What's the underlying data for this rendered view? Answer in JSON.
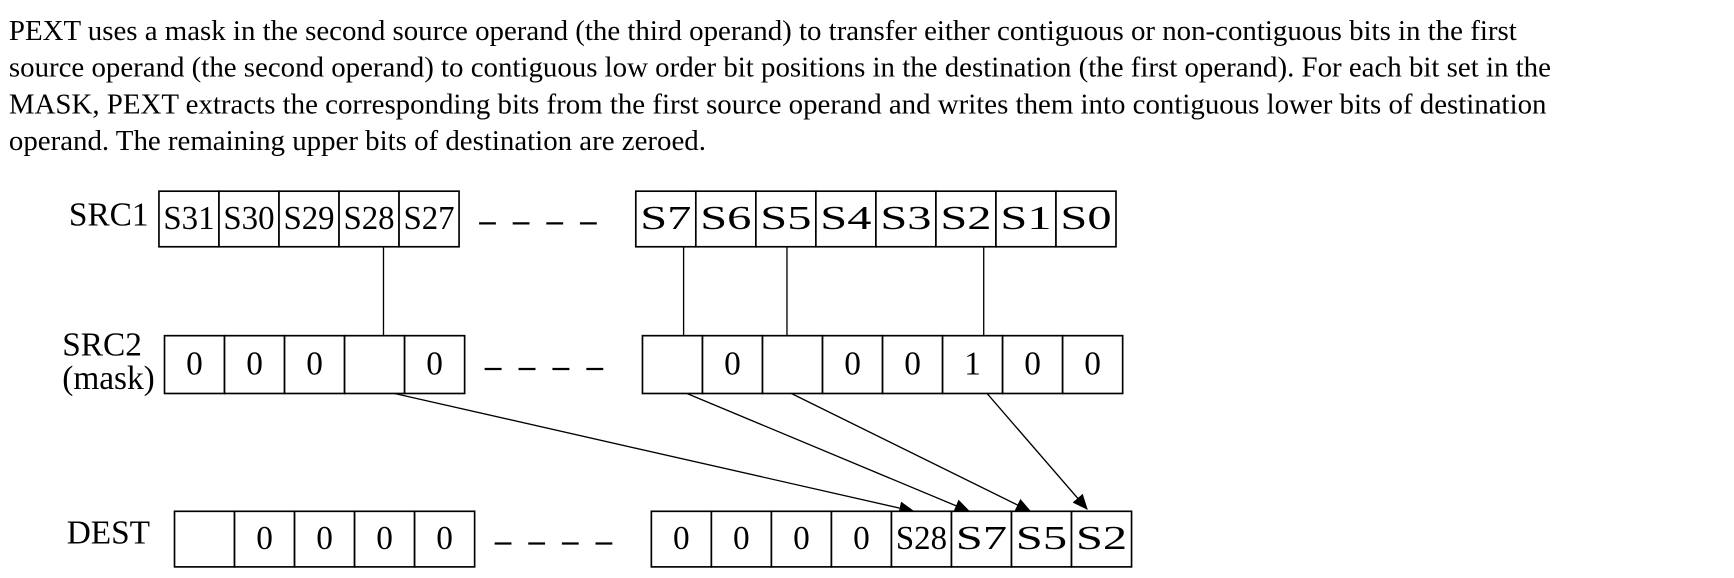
{
  "paragraph": {
    "lines": [
      "PEXT uses a mask in the second source operand (the third operand) to transfer either contiguous or non-contiguous bits in the first",
      "source operand (the second operand) to contiguous low order bit positions in the destination (the first operand). For each bit set in the",
      "MASK, PEXT extracts the corresponding bits from the first source operand and writes them into contiguous lower bits of destination",
      "operand. The remaining upper bits of destination are zeroed."
    ]
  },
  "diagram": {
    "rows": [
      {
        "label_lines": [
          "SRC1"
        ],
        "left_cells": [
          "S31",
          "S30",
          "S29",
          "S28",
          "S27"
        ],
        "right_cells": [
          "S7",
          "S6",
          "S5",
          "S4",
          "S3",
          "S2",
          "S1",
          "S0"
        ]
      },
      {
        "label_lines": [
          "SRC2",
          "(mask)"
        ],
        "left_cells": [
          "0",
          "0",
          "0",
          null,
          "0"
        ],
        "right_cells": [
          null,
          "0",
          null,
          "0",
          "0",
          "1",
          "0",
          "0"
        ]
      },
      {
        "label_lines": [
          "DEST"
        ],
        "left_cells": [
          null,
          "0",
          "0",
          "0",
          "0"
        ],
        "right_cells": [
          "0",
          "0",
          "0",
          "0",
          "S28",
          "S7",
          "S5",
          "S2"
        ]
      }
    ]
  }
}
